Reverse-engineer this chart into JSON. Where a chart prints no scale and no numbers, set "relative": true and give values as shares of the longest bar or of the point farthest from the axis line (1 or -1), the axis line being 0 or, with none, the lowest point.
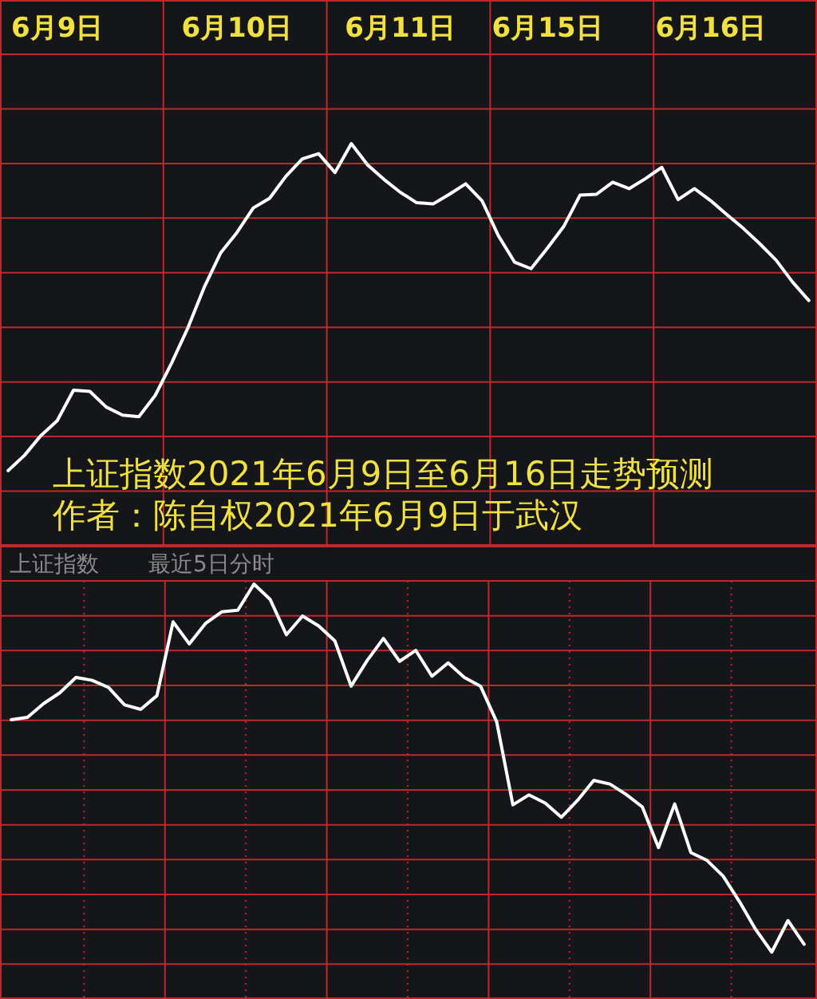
{
  "chart_data": [
    {
      "type": "line",
      "relative": true,
      "color": "#ffffff",
      "grid": true,
      "categories": [
        null,
        null,
        null,
        "6月9日",
        null,
        null,
        null,
        null,
        null,
        null,
        null,
        null,
        null,
        null,
        "6月10日",
        null,
        null,
        null,
        null,
        null,
        null,
        null,
        null,
        null,
        "6月11日",
        null,
        null,
        null,
        null,
        null,
        null,
        null,
        null,
        "6月15日",
        null,
        null,
        null,
        null,
        null,
        null,
        null,
        null,
        null,
        "6月16日",
        null,
        null,
        null,
        null,
        null,
        null
      ],
      "values": [
        0.187,
        0.225,
        0.274,
        0.311,
        0.387,
        0.384,
        0.345,
        0.325,
        0.321,
        0.374,
        0.454,
        0.542,
        0.643,
        0.728,
        0.779,
        0.84,
        0.864,
        0.919,
        0.962,
        0.975,
        0.928,
        1,
        0.947,
        0.911,
        0.879,
        0.853,
        0.85,
        0.874,
        0.9,
        0.858,
        0.771,
        0.705,
        0.689,
        0.74,
        0.794,
        0.872,
        0.874,
        0.904,
        0.888,
        0.913,
        0.941,
        0.861,
        0.888,
        0.858,
        0.823,
        0.789,
        0.751,
        0.71,
        0.656,
        0.61
      ],
      "annotations": [
        "上证指数2021年6月9日至6月16日走势预测",
        "作者：陈自权2021年6月9日于武汉"
      ]
    },
    {
      "type": "line",
      "relative": true,
      "color": "#ffffff",
      "grid": true,
      "title": "上证指数",
      "subtitle": "最近5日分时",
      "categories": [
        null,
        null,
        null,
        null,
        null,
        null,
        null,
        null,
        null,
        null,
        null,
        null,
        null,
        null,
        null,
        null,
        null,
        null,
        null,
        null,
        null,
        null,
        null,
        null,
        null,
        null,
        null,
        null,
        null,
        null,
        null,
        null,
        null,
        null,
        null,
        null,
        null,
        null,
        null,
        null,
        null,
        null,
        null,
        null,
        null,
        null,
        null,
        null,
        null,
        null
      ],
      "values": [
        0.673,
        0.679,
        0.712,
        0.738,
        0.775,
        0.768,
        0.751,
        0.709,
        0.698,
        0.731,
        0.909,
        0.856,
        0.905,
        0.933,
        0.937,
        1,
        0.963,
        0.878,
        0.923,
        0.899,
        0.863,
        0.754,
        0.816,
        0.869,
        0.814,
        0.84,
        0.778,
        0.81,
        0.775,
        0.754,
        0.668,
        0.468,
        0.492,
        0.472,
        0.438,
        0.479,
        0.527,
        0.518,
        0.493,
        0.463,
        0.365,
        0.47,
        0.353,
        0.334,
        0.296,
        0.235,
        0.168,
        0.113,
        0.189,
        0.132
      ]
    }
  ]
}
